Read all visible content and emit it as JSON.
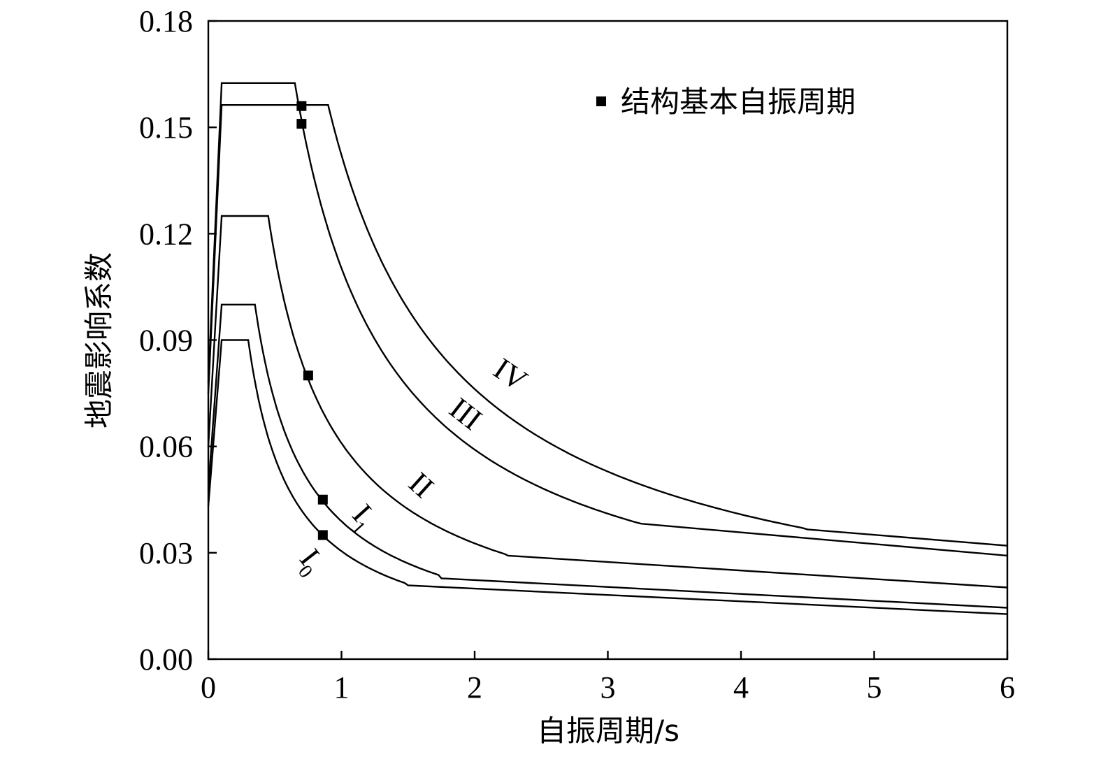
{
  "chart_data": {
    "type": "line",
    "xlabel": "自振周期/s",
    "ylabel": "地震影响系数",
    "xlim": [
      0,
      6
    ],
    "ylim": [
      0,
      0.18
    ],
    "xticks": [
      0,
      1,
      2,
      3,
      4,
      5,
      6
    ],
    "yticks": [
      0.0,
      0.03,
      0.06,
      0.09,
      0.12,
      0.15,
      0.18
    ],
    "ytick_labels": [
      "0.00",
      "0.03",
      "0.06",
      "0.09",
      "0.12",
      "0.15",
      "0.18"
    ],
    "xtick_labels": [
      "0",
      "1",
      "2",
      "3",
      "4",
      "5",
      "6"
    ],
    "grid": false,
    "legend": {
      "position": "top-right",
      "entries": [
        {
          "marker": "filled-square",
          "label": "结构基本自振周期"
        }
      ]
    },
    "series": [
      {
        "name": "I0",
        "label_main": "I",
        "label_sub": "0",
        "Tg": 0.3,
        "amax": 0.09,
        "points": [
          [
            0,
            0.0432
          ],
          [
            0.1,
            0.09
          ],
          [
            0.3,
            0.09
          ],
          [
            0.4,
            0.07
          ],
          [
            0.5,
            0.0572
          ],
          [
            0.6,
            0.0484
          ],
          [
            0.7,
            0.0419
          ],
          [
            0.8,
            0.037
          ],
          [
            1.0,
            0.0301
          ],
          [
            1.2,
            0.0254
          ],
          [
            1.5,
            0.0208
          ],
          [
            6.0,
            0.0127
          ]
        ]
      },
      {
        "name": "I1",
        "label_main": "I",
        "label_sub": "1",
        "Tg": 0.35,
        "amax": 0.1,
        "points": [
          [
            0,
            0.048
          ],
          [
            0.1,
            0.1
          ],
          [
            0.35,
            0.1
          ],
          [
            0.45,
            0.08
          ],
          [
            0.55,
            0.0665
          ],
          [
            0.65,
            0.0568
          ],
          [
            0.75,
            0.0496
          ],
          [
            0.85,
            0.044
          ],
          [
            1.0,
            0.038
          ],
          [
            1.2,
            0.032
          ],
          [
            1.5,
            0.0261
          ],
          [
            1.75,
            0.0228
          ],
          [
            6.0,
            0.0145
          ]
        ]
      },
      {
        "name": "II",
        "label_main": "II",
        "label_sub": "",
        "Tg": 0.45,
        "amax": 0.125,
        "points": [
          [
            0,
            0.06
          ],
          [
            0.1,
            0.125
          ],
          [
            0.45,
            0.125
          ],
          [
            0.55,
            0.104
          ],
          [
            0.65,
            0.0893
          ],
          [
            0.75,
            0.0783
          ],
          [
            0.85,
            0.0698
          ],
          [
            1.0,
            0.06
          ],
          [
            1.2,
            0.0508
          ],
          [
            1.5,
            0.0417
          ],
          [
            1.75,
            0.0364
          ],
          [
            2.0,
            0.0324
          ],
          [
            2.25,
            0.0292
          ],
          [
            6.0,
            0.0202
          ]
        ]
      },
      {
        "name": "III",
        "label_main": "III",
        "label_sub": "",
        "Tg": 0.65,
        "amax": 0.1625,
        "points": [
          [
            0,
            0.078
          ],
          [
            0.1,
            0.1625
          ],
          [
            0.65,
            0.1625
          ],
          [
            0.75,
            0.1428
          ],
          [
            0.85,
            0.1276
          ],
          [
            1.0,
            0.1104
          ],
          [
            1.2,
            0.0935
          ],
          [
            1.5,
            0.0763
          ],
          [
            1.75,
            0.0665
          ],
          [
            2.0,
            0.0591
          ],
          [
            2.25,
            0.0532
          ],
          [
            2.5,
            0.0484
          ],
          [
            2.75,
            0.0444
          ],
          [
            3.0,
            0.0411
          ],
          [
            3.25,
            0.0382
          ],
          [
            6.0,
            0.0292
          ]
        ]
      },
      {
        "name": "IV",
        "label_main": "IV",
        "label_sub": "",
        "Tg": 0.9,
        "amax": 0.1563,
        "points": [
          [
            0,
            0.075
          ],
          [
            0.1,
            0.1563
          ],
          [
            0.9,
            0.1563
          ],
          [
            1.0,
            0.1421
          ],
          [
            1.2,
            0.1203
          ],
          [
            1.5,
            0.0982
          ],
          [
            1.75,
            0.0856
          ],
          [
            2.0,
            0.0761
          ],
          [
            2.25,
            0.0685
          ],
          [
            2.5,
            0.0623
          ],
          [
            3.0,
            0.0529
          ],
          [
            3.5,
            0.046
          ],
          [
            4.0,
            0.0408
          ],
          [
            4.5,
            0.0366
          ],
          [
            6.0,
            0.032
          ]
        ]
      }
    ],
    "fundamental_periods": [
      [
        0.86,
        0.035
      ],
      [
        0.86,
        0.045
      ],
      [
        0.75,
        0.08
      ],
      [
        0.7,
        0.151
      ],
      [
        0.7,
        0.156
      ]
    ]
  }
}
